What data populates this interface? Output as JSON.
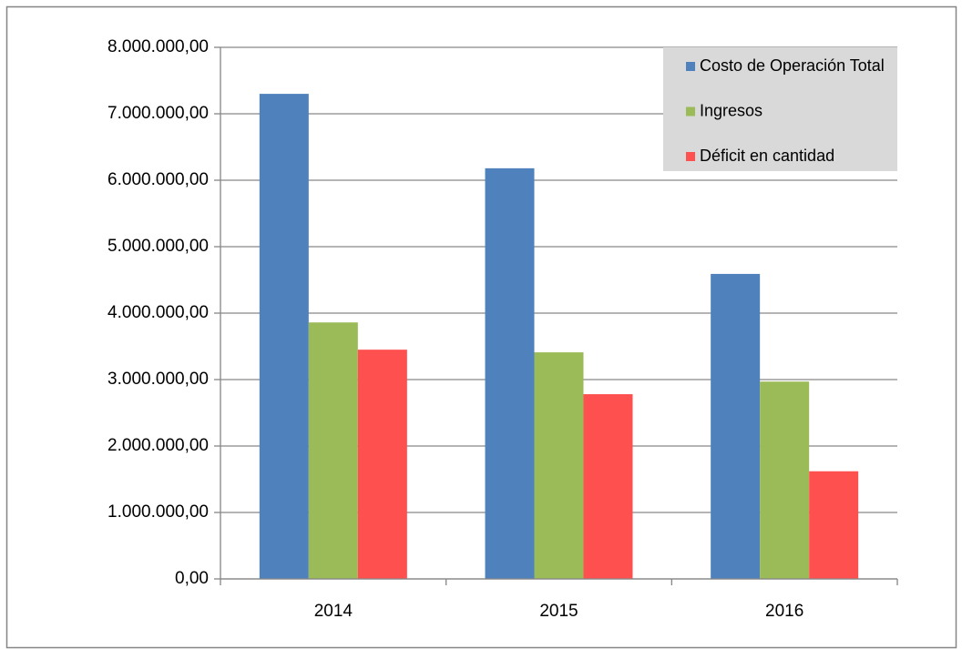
{
  "chart_data": {
    "type": "bar",
    "categories": [
      "2014",
      "2015",
      "2016"
    ],
    "series": [
      {
        "name": "Costo de Operación Total",
        "color": "#4f81bd",
        "values": [
          7300000,
          6180000,
          4590000
        ]
      },
      {
        "name": "Ingresos",
        "color": "#9bbb59",
        "values": [
          3860000,
          3410000,
          2970000
        ]
      },
      {
        "name": "Déficit en cantidad",
        "color": "#ff5050",
        "values": [
          3450000,
          2780000,
          1620000
        ]
      }
    ],
    "ylim": [
      0,
      8000000
    ],
    "yticks": [
      {
        "value": 0,
        "label": "0,00"
      },
      {
        "value": 1000000,
        "label": "1.000.000,00"
      },
      {
        "value": 2000000,
        "label": "2.000.000,00"
      },
      {
        "value": 3000000,
        "label": "3.000.000,00"
      },
      {
        "value": 4000000,
        "label": "4.000.000,00"
      },
      {
        "value": 5000000,
        "label": "5.000.000,00"
      },
      {
        "value": 6000000,
        "label": "6.000.000,00"
      },
      {
        "value": 7000000,
        "label": "7.000.000,00"
      },
      {
        "value": 8000000,
        "label": "8.000.000,00"
      }
    ],
    "grid": true,
    "legend": "top-right"
  }
}
